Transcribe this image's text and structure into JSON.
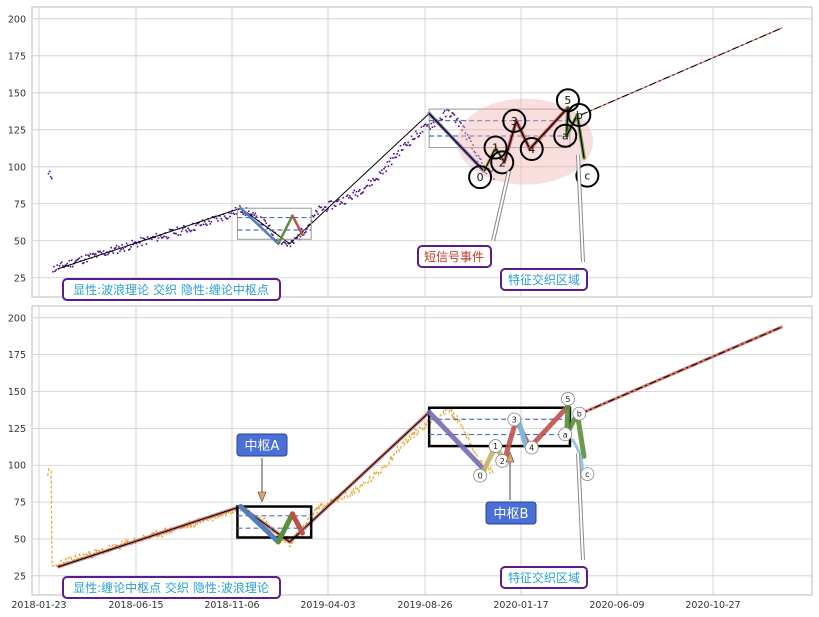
{
  "chart_data": [
    {
      "type": "line",
      "panel": "top",
      "ylim": [
        12,
        208
      ],
      "yticks": [
        25,
        50,
        75,
        100,
        125,
        150,
        175,
        200
      ],
      "grid": true,
      "x_ticks": [
        "2018-01-23",
        "2018-06-15",
        "2018-11-06",
        "2019-04-03",
        "2019-08-26",
        "2020-01-17",
        "2020-06-09",
        "2020-10-27"
      ],
      "price_color": "#4b0f8a",
      "annotations": {
        "legend_box": "显性:波浪理论 交织 隐性:缠论中枢点",
        "short_signal": "短信号事件",
        "zone": "特征交织区域"
      },
      "wave_labels": [
        "0",
        "1",
        "2",
        "3",
        "4",
        "5",
        "a",
        "b",
        "c"
      ]
    },
    {
      "type": "line",
      "panel": "bottom",
      "ylim": [
        12,
        208
      ],
      "yticks": [
        25,
        50,
        75,
        100,
        125,
        150,
        175,
        200
      ],
      "grid": true,
      "x_ticks": [
        "2018-01-23",
        "2018-06-15",
        "2018-11-06",
        "2019-04-03",
        "2019-08-26",
        "2020-01-17",
        "2020-06-09",
        "2020-10-27"
      ],
      "price_color": "#e8a72c",
      "annotations": {
        "legend_box": "显性:缠论中枢点 交织 隐性:波浪理论",
        "center_a": "中枢A",
        "center_b": "中枢B",
        "zone": "特征交织区域"
      },
      "wave_labels": [
        "0",
        "1",
        "2",
        "3",
        "4",
        "5",
        "a",
        "b",
        "c"
      ]
    }
  ],
  "colors": {
    "wave_blue": "#4f7fbf",
    "wave_green": "#5c8f3a",
    "wave_red": "#c0504d",
    "wave_purple": "#7a6bb5",
    "wave_tan": "#c9b36a",
    "trend_line": "#000000",
    "projection": "#c0392b",
    "label_text": "#2a9fd6",
    "signal_text": "#c0392b"
  }
}
